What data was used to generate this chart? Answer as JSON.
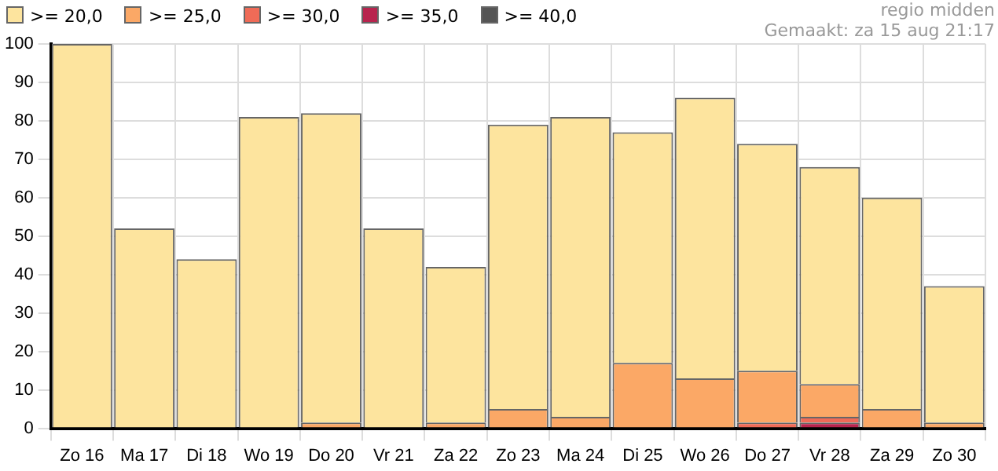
{
  "chart_data": {
    "type": "bar",
    "stacked": true,
    "categories": [
      "Zo 16",
      "Ma 17",
      "Di 18",
      "Wo 19",
      "Do 20",
      "Vr 21",
      "Za 22",
      "Zo 23",
      "Ma 24",
      "Di 25",
      "Wo 26",
      "Do 27",
      "Vr 28",
      "Za 29",
      "Zo 30"
    ],
    "series": [
      {
        "name": ">= 40,0",
        "color": "#555555",
        "values": [
          0,
          0,
          0,
          0,
          0,
          0,
          0,
          0,
          0,
          0,
          0,
          0,
          0,
          0,
          0
        ]
      },
      {
        "name": ">= 35,0",
        "color": "#b8244e",
        "values": [
          0,
          0,
          0,
          0,
          0,
          0,
          0,
          0,
          0,
          0,
          0,
          0,
          1.5,
          0,
          0
        ]
      },
      {
        "name": ">= 30,0",
        "color": "#ef6b57",
        "values": [
          0,
          0,
          0,
          0,
          0,
          0,
          0,
          0,
          0,
          0,
          0,
          1.5,
          1.5,
          0,
          0
        ]
      },
      {
        "name": ">= 25,0",
        "color": "#fba866",
        "values": [
          0,
          0,
          0,
          0,
          1.5,
          0,
          1.5,
          5,
          3,
          17,
          13,
          13.5,
          8.5,
          5,
          1.5
        ]
      },
      {
        "name": ">= 20,0",
        "color": "#fde49e",
        "values": [
          100,
          52,
          44,
          81,
          80.5,
          52,
          40.5,
          74,
          78,
          60,
          73,
          59,
          56.5,
          55,
          35.5
        ]
      }
    ],
    "ylim": [
      0,
      100
    ],
    "yticks": [
      0,
      10,
      20,
      30,
      40,
      50,
      60,
      70,
      80,
      90,
      100
    ],
    "grid": true,
    "legend": "top left",
    "annotations": [
      "regio midden",
      "Gemaakt: za 15 aug 21:17"
    ]
  }
}
